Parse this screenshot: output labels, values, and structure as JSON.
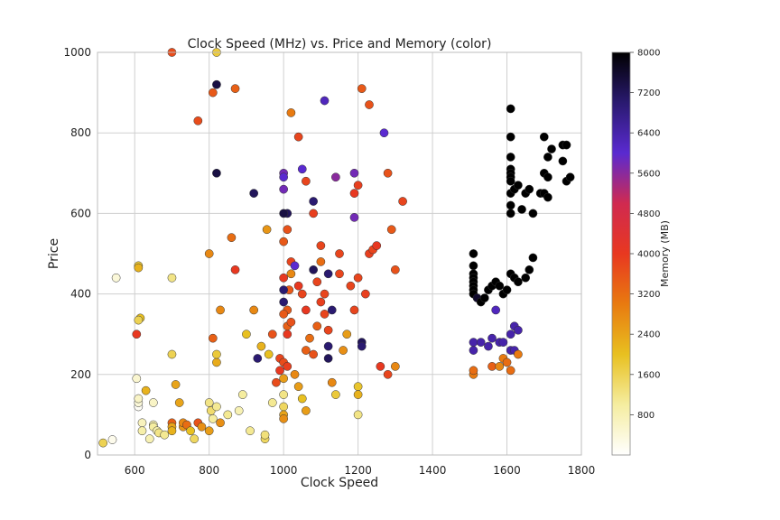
{
  "chart_data": {
    "type": "scatter",
    "title": "Clock Speed (MHz) vs. Price and Memory (color)",
    "xlabel": "Clock Speed",
    "ylabel": "Price",
    "xlim": [
      500,
      1800
    ],
    "ylim": [
      0,
      1000
    ],
    "x_ticks": [
      "600",
      "800",
      "1000",
      "1200",
      "1400",
      "1600",
      "1800"
    ],
    "x_tick_values": [
      600,
      800,
      1000,
      1200,
      1400,
      1600,
      1800
    ],
    "y_ticks": [
      "0",
      "200",
      "400",
      "600",
      "800",
      "1000"
    ],
    "y_tick_values": [
      0,
      200,
      400,
      600,
      800,
      1000
    ],
    "grid": true,
    "colorbar": {
      "label": "Memory (MB)",
      "range": [
        0,
        8000
      ],
      "ticks": [
        "800",
        "1600",
        "2400",
        "3200",
        "4000",
        "4800",
        "5600",
        "6400",
        "7200",
        "8000"
      ],
      "tick_values": [
        800,
        1600,
        2400,
        3200,
        4000,
        4800,
        5600,
        6400,
        7200,
        8000
      ],
      "colormap_stops": [
        "#ffffff",
        "#f5eda0",
        "#e8c020",
        "#e87a10",
        "#e83820",
        "#d02a50",
        "#5a2ad0",
        "#2a1a70",
        "#000000"
      ]
    },
    "points": [
      [
        515,
        30,
        1600
      ],
      [
        540,
        38,
        200
      ],
      [
        550,
        440,
        400
      ],
      [
        610,
        120,
        100
      ],
      [
        610,
        130,
        400
      ],
      [
        610,
        140,
        600
      ],
      [
        620,
        80,
        700
      ],
      [
        620,
        60,
        900
      ],
      [
        640,
        40,
        800
      ],
      [
        630,
        160,
        2200
      ],
      [
        610,
        470,
        1800
      ],
      [
        610,
        465,
        2200
      ],
      [
        615,
        340,
        2000
      ],
      [
        610,
        335,
        1600
      ],
      [
        605,
        190,
        500
      ],
      [
        605,
        300,
        4000
      ],
      [
        650,
        130,
        600
      ],
      [
        650,
        75,
        800
      ],
      [
        650,
        70,
        1000
      ],
      [
        660,
        60,
        900
      ],
      [
        665,
        55,
        1200
      ],
      [
        680,
        50,
        1100
      ],
      [
        700,
        440,
        1200
      ],
      [
        700,
        250,
        1600
      ],
      [
        700,
        80,
        3400
      ],
      [
        700,
        70,
        2400
      ],
      [
        700,
        60,
        2200
      ],
      [
        710,
        175,
        2400
      ],
      [
        720,
        130,
        2400
      ],
      [
        730,
        70,
        2600
      ],
      [
        730,
        80,
        2800
      ],
      [
        740,
        75,
        3200
      ],
      [
        750,
        60,
        2000
      ],
      [
        760,
        40,
        1500
      ],
      [
        770,
        80,
        3600
      ],
      [
        780,
        70,
        2700
      ],
      [
        800,
        60,
        2500
      ],
      [
        800,
        130,
        1200
      ],
      [
        805,
        110,
        1400
      ],
      [
        810,
        90,
        1000
      ],
      [
        820,
        120,
        1100
      ],
      [
        830,
        80,
        2700
      ],
      [
        820,
        230,
        2300
      ],
      [
        820,
        250,
        1800
      ],
      [
        810,
        290,
        3400
      ],
      [
        800,
        500,
        2800
      ],
      [
        830,
        360,
        2800
      ],
      [
        850,
        100,
        1100
      ],
      [
        860,
        540,
        3200
      ],
      [
        870,
        460,
        4000
      ],
      [
        880,
        110,
        800
      ],
      [
        890,
        150,
        1000
      ],
      [
        900,
        300,
        2000
      ],
      [
        910,
        60,
        1100
      ],
      [
        920,
        360,
        2800
      ],
      [
        930,
        240,
        7000
      ],
      [
        940,
        270,
        2200
      ],
      [
        950,
        40,
        1500
      ],
      [
        950,
        50,
        1300
      ],
      [
        955,
        560,
        2600
      ],
      [
        960,
        250,
        2000
      ],
      [
        970,
        130,
        1100
      ],
      [
        970,
        300,
        3600
      ],
      [
        980,
        180,
        3700
      ],
      [
        990,
        210,
        4000
      ],
      [
        990,
        240,
        3800
      ],
      [
        1000,
        230,
        3700
      ],
      [
        1000,
        190,
        2500
      ],
      [
        1000,
        150,
        1200
      ],
      [
        1000,
        120,
        1500
      ],
      [
        1000,
        100,
        2400
      ],
      [
        1000,
        90,
        2700
      ],
      [
        1010,
        220,
        3900
      ],
      [
        1010,
        300,
        4000
      ],
      [
        1010,
        360,
        3500
      ],
      [
        1015,
        410,
        3500
      ],
      [
        1020,
        450,
        2800
      ],
      [
        1020,
        480,
        3800
      ],
      [
        1030,
        200,
        2800
      ],
      [
        1040,
        170,
        2500
      ],
      [
        1050,
        140,
        2000
      ],
      [
        1060,
        110,
        2500
      ],
      [
        1060,
        260,
        3400
      ],
      [
        1070,
        290,
        3200
      ],
      [
        1080,
        250,
        3600
      ],
      [
        1090,
        320,
        3400
      ],
      [
        1100,
        480,
        3200
      ],
      [
        1100,
        520,
        3800
      ],
      [
        1110,
        350,
        3800
      ],
      [
        1120,
        310,
        3800
      ],
      [
        1120,
        270,
        7000
      ],
      [
        1120,
        240,
        7200
      ],
      [
        1130,
        180,
        2800
      ],
      [
        1140,
        150,
        1800
      ],
      [
        1150,
        450,
        3800
      ],
      [
        1150,
        500,
        3800
      ],
      [
        1160,
        260,
        2700
      ],
      [
        1170,
        300,
        2500
      ],
      [
        1180,
        420,
        3800
      ],
      [
        1190,
        360,
        3800
      ],
      [
        1200,
        440,
        3800
      ],
      [
        1200,
        170,
        1900
      ],
      [
        1200,
        150,
        2200
      ],
      [
        1200,
        100,
        1200
      ],
      [
        1210,
        280,
        7200
      ],
      [
        1210,
        270,
        7000
      ],
      [
        1220,
        400,
        3900
      ],
      [
        1230,
        500,
        3900
      ],
      [
        1240,
        510,
        3800
      ],
      [
        1250,
        520,
        4000
      ],
      [
        1260,
        220,
        4000
      ],
      [
        1280,
        200,
        3800
      ],
      [
        1290,
        560,
        3500
      ],
      [
        1300,
        220,
        2800
      ],
      [
        1300,
        460,
        3600
      ],
      [
        1320,
        630,
        3800
      ],
      [
        1280,
        700,
        3600
      ],
      [
        1270,
        800,
        6000
      ],
      [
        1230,
        870,
        3600
      ],
      [
        1210,
        910,
        3500
      ],
      [
        1190,
        650,
        4000
      ],
      [
        1200,
        670,
        3900
      ],
      [
        1190,
        700,
        5800
      ],
      [
        1190,
        590,
        5800
      ],
      [
        1140,
        690,
        5600
      ],
      [
        1110,
        880,
        6200
      ],
      [
        1080,
        600,
        3900
      ],
      [
        1080,
        630,
        7000
      ],
      [
        1060,
        680,
        3800
      ],
      [
        1050,
        710,
        6000
      ],
      [
        1040,
        790,
        3800
      ],
      [
        1020,
        850,
        3000
      ],
      [
        1010,
        600,
        7200
      ],
      [
        1010,
        560,
        3600
      ],
      [
        1000,
        700,
        5800
      ],
      [
        1000,
        690,
        6000
      ],
      [
        1000,
        660,
        5800
      ],
      [
        1000,
        600,
        7400
      ],
      [
        1000,
        530,
        3500
      ],
      [
        1000,
        440,
        4000
      ],
      [
        1000,
        410,
        7000
      ],
      [
        1000,
        380,
        7000
      ],
      [
        1000,
        350,
        3500
      ],
      [
        1010,
        320,
        3400
      ],
      [
        1020,
        330,
        3600
      ],
      [
        1030,
        470,
        6000
      ],
      [
        1040,
        420,
        4000
      ],
      [
        1050,
        400,
        3800
      ],
      [
        1060,
        360,
        4000
      ],
      [
        1080,
        460,
        7200
      ],
      [
        1090,
        430,
        3800
      ],
      [
        1100,
        380,
        3900
      ],
      [
        1110,
        400,
        3800
      ],
      [
        1120,
        450,
        7000
      ],
      [
        1130,
        360,
        7000
      ],
      [
        920,
        650,
        7200
      ],
      [
        820,
        700,
        7400
      ],
      [
        820,
        920,
        7400
      ],
      [
        870,
        910,
        3400
      ],
      [
        810,
        900,
        3500
      ],
      [
        770,
        830,
        3700
      ],
      [
        700,
        1000,
        3700
      ],
      [
        820,
        1000,
        1800
      ],
      [
        1510,
        500,
        8000
      ],
      [
        1510,
        470,
        8000
      ],
      [
        1510,
        450,
        8000
      ],
      [
        1510,
        440,
        8000
      ],
      [
        1510,
        430,
        8000
      ],
      [
        1510,
        420,
        8000
      ],
      [
        1510,
        410,
        8000
      ],
      [
        1510,
        400,
        8000
      ],
      [
        1520,
        390,
        7600
      ],
      [
        1530,
        380,
        8000
      ],
      [
        1540,
        390,
        8000
      ],
      [
        1550,
        410,
        8000
      ],
      [
        1560,
        420,
        8000
      ],
      [
        1570,
        430,
        8000
      ],
      [
        1580,
        420,
        8000
      ],
      [
        1590,
        400,
        8000
      ],
      [
        1600,
        410,
        8000
      ],
      [
        1610,
        450,
        8000
      ],
      [
        1620,
        440,
        8000
      ],
      [
        1630,
        430,
        8000
      ],
      [
        1650,
        440,
        8000
      ],
      [
        1660,
        460,
        8000
      ],
      [
        1670,
        490,
        8000
      ],
      [
        1610,
        860,
        8000
      ],
      [
        1610,
        790,
        8000
      ],
      [
        1610,
        740,
        8000
      ],
      [
        1610,
        710,
        8000
      ],
      [
        1610,
        700,
        8000
      ],
      [
        1610,
        690,
        8000
      ],
      [
        1610,
        680,
        8000
      ],
      [
        1610,
        650,
        8000
      ],
      [
        1610,
        620,
        8000
      ],
      [
        1610,
        600,
        8000
      ],
      [
        1620,
        660,
        8000
      ],
      [
        1630,
        670,
        8000
      ],
      [
        1640,
        610,
        8000
      ],
      [
        1650,
        650,
        8000
      ],
      [
        1660,
        660,
        8000
      ],
      [
        1670,
        600,
        8000
      ],
      [
        1690,
        650,
        8000
      ],
      [
        1700,
        790,
        8000
      ],
      [
        1700,
        700,
        8000
      ],
      [
        1700,
        650,
        8000
      ],
      [
        1710,
        740,
        8000
      ],
      [
        1710,
        640,
        8000
      ],
      [
        1710,
        690,
        8000
      ],
      [
        1720,
        760,
        8000
      ],
      [
        1750,
        770,
        8000
      ],
      [
        1750,
        730,
        8000
      ],
      [
        1760,
        770,
        8000
      ],
      [
        1760,
        680,
        8000
      ],
      [
        1770,
        690,
        8000
      ],
      [
        1510,
        280,
        6400
      ],
      [
        1510,
        260,
        6400
      ],
      [
        1530,
        280,
        6400
      ],
      [
        1550,
        270,
        6400
      ],
      [
        1560,
        290,
        6400
      ],
      [
        1580,
        280,
        6400
      ],
      [
        1590,
        280,
        6400
      ],
      [
        1610,
        300,
        6400
      ],
      [
        1620,
        320,
        6400
      ],
      [
        1630,
        310,
        6400
      ],
      [
        1610,
        260,
        6400
      ],
      [
        1620,
        260,
        6400
      ],
      [
        1570,
        360,
        6200
      ],
      [
        1510,
        200,
        3000
      ],
      [
        1510,
        210,
        3200
      ],
      [
        1560,
        220,
        3400
      ],
      [
        1580,
        220,
        2800
      ],
      [
        1590,
        240,
        3000
      ],
      [
        1600,
        230,
        3200
      ],
      [
        1610,
        210,
        3200
      ],
      [
        1630,
        250,
        3000
      ]
    ]
  }
}
